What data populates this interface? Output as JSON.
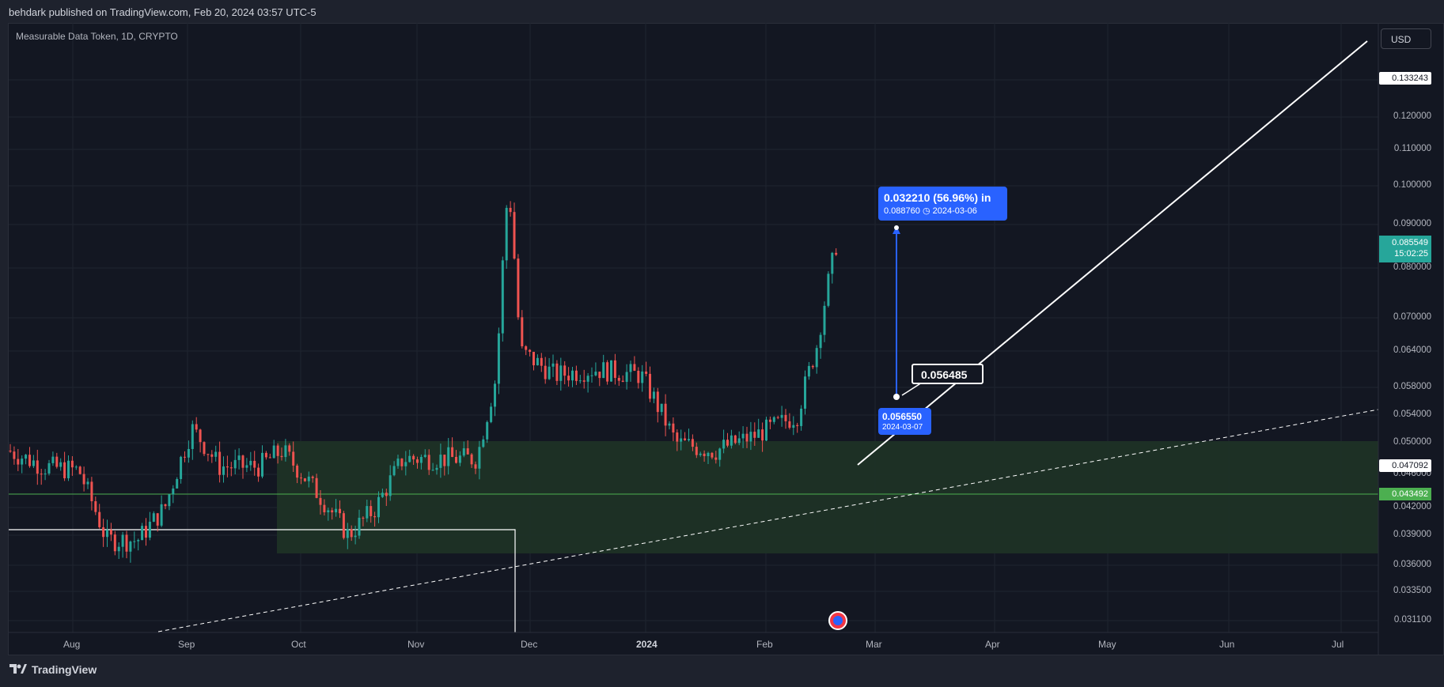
{
  "header": {
    "published": "behdark published on TradingView.com, Feb 20, 2024 03:57 UTC-5"
  },
  "symbol": {
    "title": "Measurable Data Token, 1D, CRYPTO"
  },
  "currency_button": "USD",
  "price_axis": [
    "0.130000",
    "0.120000",
    "0.110000",
    "0.100000",
    "0.090000",
    "0.080000",
    "0.070000",
    "0.064000",
    "0.058000",
    "0.054000",
    "0.050000",
    "0.046000",
    "0.042000",
    "0.039000",
    "0.036000",
    "0.033500",
    "0.031100"
  ],
  "time_axis": [
    "Aug",
    "Sep",
    "Oct",
    "Nov",
    "Dec",
    "2024",
    "Feb",
    "Mar",
    "Apr",
    "May",
    "Jun",
    "Jul"
  ],
  "tags": {
    "top_line": "0.133243",
    "last_price": "0.085549",
    "countdown": "15:02:25",
    "white_line": "0.047092",
    "green_line": "0.043492"
  },
  "measure": {
    "change": "0.032210 (56.96%) in",
    "target": "0.088760",
    "target_date": "2024-03-06",
    "start": "0.056550",
    "start_date": "2024-03-07"
  },
  "callout": "0.056485",
  "footer": {
    "brand": "TradingView"
  },
  "colors": {
    "up": "#26a69a",
    "down": "#ef5350",
    "zone": "#1e3a2a",
    "measure": "#2962ff",
    "green_line": "#4caf50"
  },
  "chart_data": {
    "type": "candlestick",
    "title": "Measurable Data Token, 1D, CRYPTO",
    "ylim": [
      0.0295,
      0.1365
    ],
    "x_range": [
      "2024-07-21",
      "2024-07-15"
    ],
    "series": [
      {
        "date": "2023-07-23",
        "c": 0.049
      },
      {
        "date": "2023-08-01",
        "c": 0.047
      },
      {
        "date": "2023-08-10",
        "c": 0.0465
      },
      {
        "date": "2023-08-17",
        "c": 0.0385
      },
      {
        "date": "2023-08-25",
        "c": 0.0385
      },
      {
        "date": "2023-09-01",
        "c": 0.042
      },
      {
        "date": "2023-09-08",
        "c": 0.052
      },
      {
        "date": "2023-09-15",
        "c": 0.047
      },
      {
        "date": "2023-09-25",
        "c": 0.047
      },
      {
        "date": "2023-10-01",
        "c": 0.049
      },
      {
        "date": "2023-10-08",
        "c": 0.045
      },
      {
        "date": "2023-10-18",
        "c": 0.039
      },
      {
        "date": "2023-10-25",
        "c": 0.042
      },
      {
        "date": "2023-11-01",
        "c": 0.048
      },
      {
        "date": "2023-11-10",
        "c": 0.048
      },
      {
        "date": "2023-11-20",
        "c": 0.048
      },
      {
        "date": "2023-11-25",
        "c": 0.06
      },
      {
        "date": "2023-11-28",
        "c": 0.101
      },
      {
        "date": "2023-12-01",
        "c": 0.064
      },
      {
        "date": "2023-12-10",
        "c": 0.06
      },
      {
        "date": "2023-12-20",
        "c": 0.061
      },
      {
        "date": "2024-01-01",
        "c": 0.06
      },
      {
        "date": "2024-01-10",
        "c": 0.05
      },
      {
        "date": "2024-01-20",
        "c": 0.049
      },
      {
        "date": "2024-01-30",
        "c": 0.051
      },
      {
        "date": "2024-02-10",
        "c": 0.054
      },
      {
        "date": "2024-02-15",
        "c": 0.065
      },
      {
        "date": "2024-02-20",
        "c": 0.0855
      }
    ],
    "annotations": {
      "demand_zone": {
        "from": "2023-09-25",
        "to": "2024-07-15",
        "low": 0.0375,
        "high": 0.05
      },
      "horizontal_line": 0.043492,
      "measure_from": 0.05655,
      "measure_to": 0.08876
    }
  }
}
